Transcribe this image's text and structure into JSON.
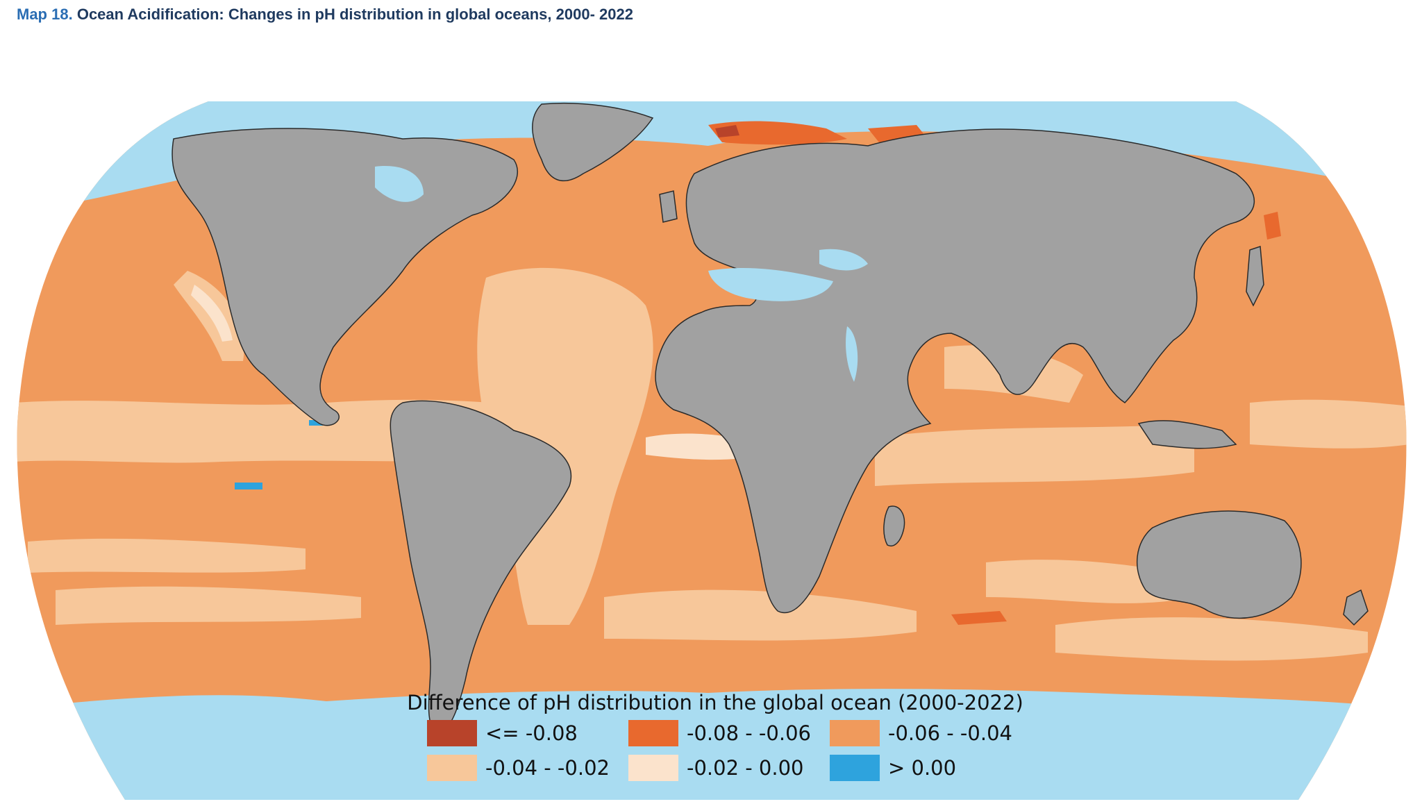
{
  "title": {
    "map_number": "Map 18.",
    "text": "Ocean Acidification: Changes in pH distribution in global oceans, 2000- 2022"
  },
  "legend": {
    "title": "Difference of pH distribution in the global ocean (2000-2022)",
    "items": [
      {
        "label": "<= -0.08",
        "color": "#b8432a"
      },
      {
        "label": "-0.08 - -0.06",
        "color": "#e8692e"
      },
      {
        "label": "-0.06 - -0.04",
        "color": "#f09a5c"
      },
      {
        "label": "-0.04 - -0.02",
        "color": "#f7c79a"
      },
      {
        "label": "-0.02 - 0.00",
        "color": "#fbe3cc"
      },
      {
        "label": "> 0.00",
        "color": "#2ea3dd"
      }
    ]
  },
  "colors": {
    "land": "#a1a1a1",
    "coastal_no_data": "#a9dcf1",
    "ocean_base": "#f09a5c"
  }
}
